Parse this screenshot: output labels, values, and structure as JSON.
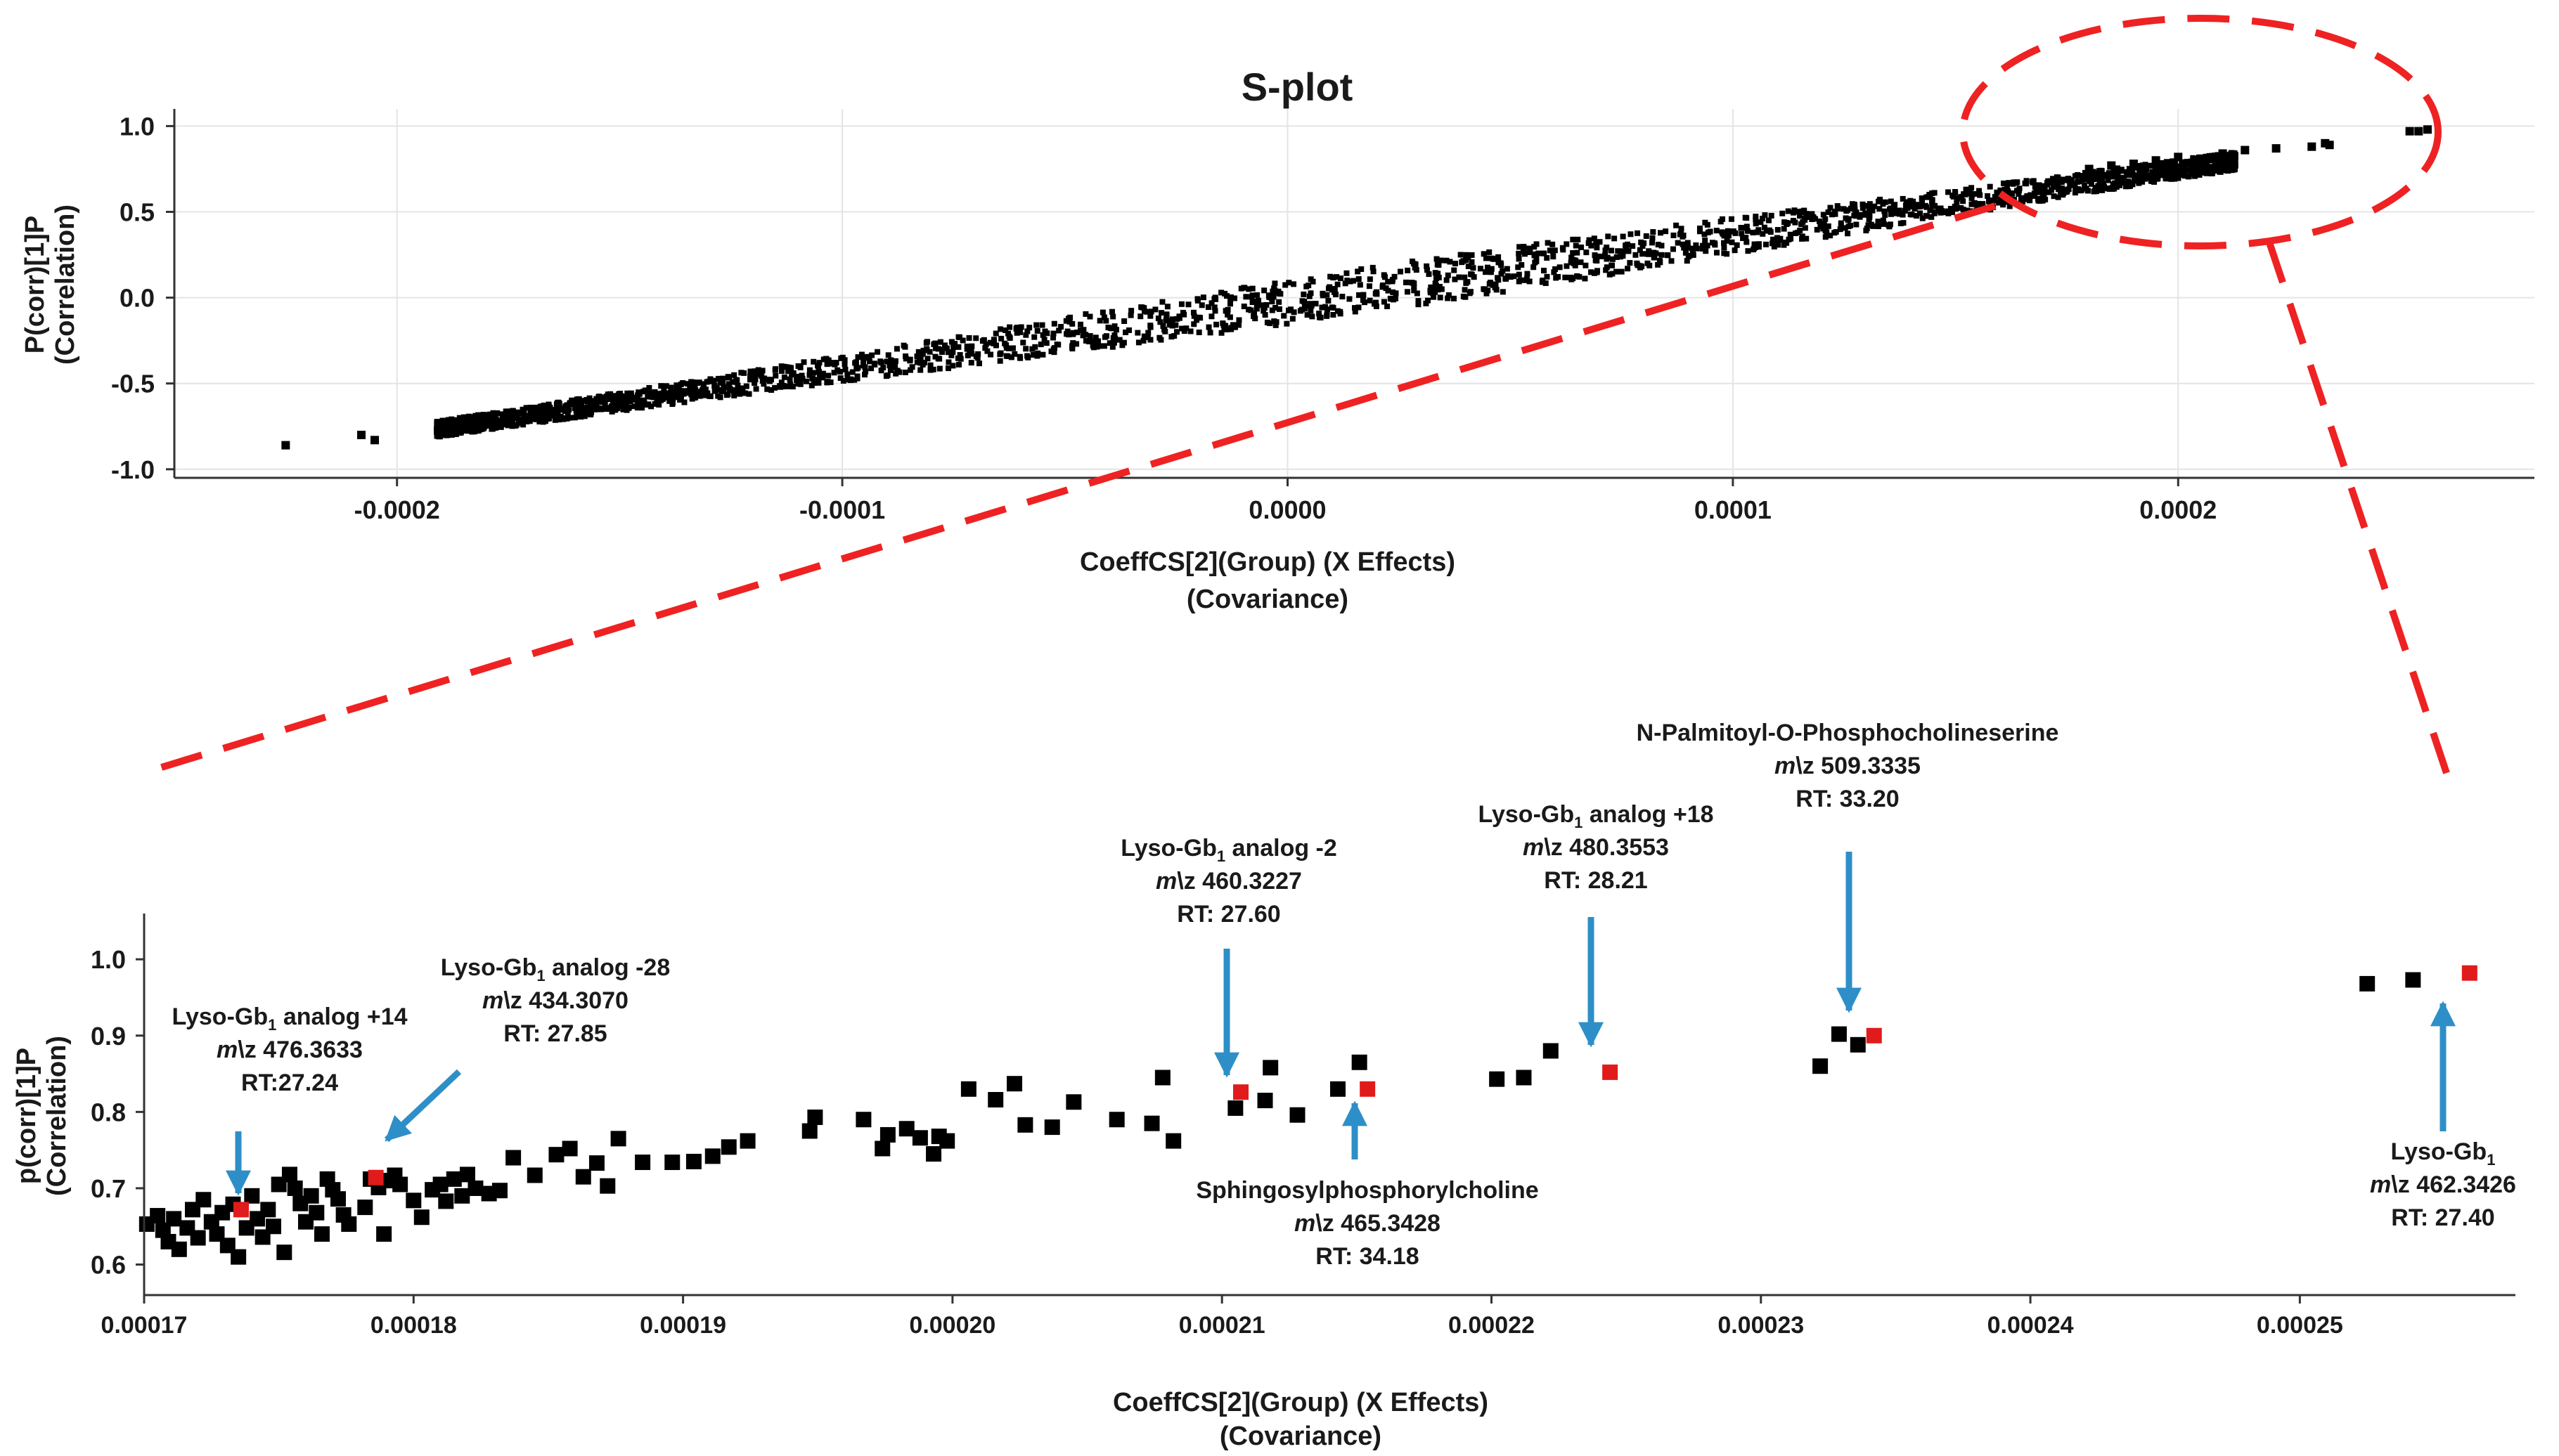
{
  "colors": {
    "point": "#000000",
    "highlight": "#e11b1b",
    "arrow": "#2e8fc8",
    "zoom": "#ee2222",
    "grid": "#e4e4e4"
  },
  "chart_data": [
    {
      "type": "scatter",
      "title": "S-plot",
      "xlabel": "CoeffCS[2](Group) (X Effects)",
      "xlabel2": "(Covariance)",
      "ylabel": "P(corr)[1]P",
      "ylabel2": "(Correlation)",
      "xlim": [
        -0.00025,
        0.00028
      ],
      "ylim": [
        -1.05,
        1.1
      ],
      "xticks": [
        -0.0002,
        -0.0001,
        0.0,
        0.0001,
        0.0002
      ],
      "xtick_labels": [
        "-0.0002",
        "-0.0001",
        "0.0000",
        "0.0001",
        "0.0002"
      ],
      "yticks": [
        1.0,
        0.5,
        0.0,
        -0.5,
        -1.0
      ],
      "ytick_labels": [
        "1.0",
        "0.5",
        "0.0",
        "-0.5",
        "-1.0"
      ],
      "band": {
        "description": "dense cloud of thousands of variables along S-curve",
        "x_start": -0.00021,
        "x_end": 0.00026,
        "y_start": -0.84,
        "y_end": 0.98
      },
      "points": [
        {
          "x": -0.000225,
          "y": -0.86
        },
        {
          "x": -0.000208,
          "y": -0.8
        },
        {
          "x": -0.000205,
          "y": -0.83
        },
        {
          "x": -0.00019,
          "y": -0.76
        },
        {
          "x": -0.000185,
          "y": -0.73
        },
        {
          "x": -0.00018,
          "y": -0.72
        },
        {
          "x": 0.00018,
          "y": 0.75
        },
        {
          "x": 0.000185,
          "y": 0.77
        },
        {
          "x": 0.00019,
          "y": 0.78
        },
        {
          "x": 0.000195,
          "y": 0.8
        },
        {
          "x": 0.0002,
          "y": 0.82
        },
        {
          "x": 0.000205,
          "y": 0.81
        },
        {
          "x": 0.00021,
          "y": 0.84
        },
        {
          "x": 0.000215,
          "y": 0.86
        },
        {
          "x": 0.000222,
          "y": 0.87
        },
        {
          "x": 0.00023,
          "y": 0.88
        },
        {
          "x": 0.000233,
          "y": 0.9
        },
        {
          "x": 0.000234,
          "y": 0.89
        },
        {
          "x": 0.000252,
          "y": 0.97
        },
        {
          "x": 0.000254,
          "y": 0.97
        },
        {
          "x": 0.000256,
          "y": 0.98
        }
      ]
    },
    {
      "type": "scatter",
      "title": "",
      "xlabel": "CoeffCS[2](Group) (X Effects)",
      "xlabel2": "(Covariance)",
      "ylabel": "p(corr)[1]P",
      "ylabel2": "(Correlation)",
      "xlim": [
        0.00017,
        0.000258
      ],
      "ylim": [
        0.56,
        1.06
      ],
      "xticks": [
        0.00017,
        0.00018,
        0.00019,
        0.0002,
        0.00021,
        0.00022,
        0.00023,
        0.00024,
        0.00025
      ],
      "xtick_labels": [
        "0.00017",
        "0.00018",
        "0.00019",
        "0.00020",
        "0.00021",
        "0.00022",
        "0.00023",
        "0.00024",
        "0.00025"
      ],
      "yticks": [
        1.0,
        0.9,
        0.8,
        0.7,
        0.6
      ],
      "ytick_labels": [
        "1.0",
        "0.9",
        "0.8",
        "0.7",
        "0.6"
      ],
      "points": [
        [
          0.0001701,
          0.653
        ],
        [
          0.0001705,
          0.664
        ],
        [
          0.0001707,
          0.645
        ],
        [
          0.0001709,
          0.63
        ],
        [
          0.0001711,
          0.66
        ],
        [
          0.0001713,
          0.62
        ],
        [
          0.0001716,
          0.648
        ],
        [
          0.0001718,
          0.672
        ],
        [
          0.000172,
          0.635
        ],
        [
          0.0001722,
          0.685
        ],
        [
          0.0001725,
          0.656
        ],
        [
          0.0001727,
          0.64
        ],
        [
          0.0001729,
          0.668
        ],
        [
          0.0001731,
          0.625
        ],
        [
          0.0001733,
          0.679
        ],
        [
          0.0001735,
          0.61
        ],
        [
          0.0001738,
          0.648
        ],
        [
          0.000174,
          0.69
        ],
        [
          0.0001742,
          0.66
        ],
        [
          0.0001744,
          0.636
        ],
        [
          0.0001746,
          0.672
        ],
        [
          0.0001748,
          0.65
        ],
        [
          0.000175,
          0.705
        ],
        [
          0.0001752,
          0.616
        ],
        [
          0.0001754,
          0.718
        ],
        [
          0.0001756,
          0.7
        ],
        [
          0.0001758,
          0.68
        ],
        [
          0.000176,
          0.656
        ],
        [
          0.0001762,
          0.69
        ],
        [
          0.0001764,
          0.668
        ],
        [
          0.0001766,
          0.64
        ],
        [
          0.0001768,
          0.712
        ],
        [
          0.000177,
          0.698
        ],
        [
          0.0001772,
          0.686
        ],
        [
          0.0001774,
          0.665
        ],
        [
          0.0001776,
          0.653
        ],
        [
          0.0001782,
          0.675
        ],
        [
          0.0001784,
          0.712
        ],
        [
          0.0001787,
          0.701
        ],
        [
          0.0001789,
          0.64
        ],
        [
          0.0001791,
          0.71
        ],
        [
          0.0001793,
          0.717
        ],
        [
          0.0001795,
          0.705
        ],
        [
          0.00018,
          0.684
        ],
        [
          0.0001803,
          0.662
        ],
        [
          0.0001807,
          0.698
        ],
        [
          0.000181,
          0.705
        ],
        [
          0.0001812,
          0.683
        ],
        [
          0.0001815,
          0.712
        ],
        [
          0.0001818,
          0.69
        ],
        [
          0.000182,
          0.718
        ],
        [
          0.0001823,
          0.7
        ],
        [
          0.0001828,
          0.693
        ],
        [
          0.0001832,
          0.697
        ],
        [
          0.0001837,
          0.74
        ],
        [
          0.0001845,
          0.717
        ],
        [
          0.0001853,
          0.744
        ],
        [
          0.0001858,
          0.752
        ],
        [
          0.0001863,
          0.715
        ],
        [
          0.0001868,
          0.733
        ],
        [
          0.0001872,
          0.703
        ],
        [
          0.0001876,
          0.765
        ],
        [
          0.0001885,
          0.734
        ],
        [
          0.0001896,
          0.734
        ],
        [
          0.0001904,
          0.735
        ],
        [
          0.0001911,
          0.742
        ],
        [
          0.0001917,
          0.754
        ],
        [
          0.0001924,
          0.762
        ],
        [
          0.0001947,
          0.775
        ],
        [
          0.0001949,
          0.793
        ],
        [
          0.0001967,
          0.79
        ],
        [
          0.0001974,
          0.752
        ],
        [
          0.0001976,
          0.77
        ],
        [
          0.0001983,
          0.778
        ],
        [
          0.0001988,
          0.766
        ],
        [
          0.0001993,
          0.745
        ],
        [
          0.0001995,
          0.768
        ],
        [
          0.0001998,
          0.762
        ],
        [
          0.0002006,
          0.83
        ],
        [
          0.0002016,
          0.816
        ],
        [
          0.0002023,
          0.837
        ],
        [
          0.0002027,
          0.783
        ],
        [
          0.0002037,
          0.78
        ],
        [
          0.0002045,
          0.813
        ],
        [
          0.0002061,
          0.79
        ],
        [
          0.0002074,
          0.785
        ],
        [
          0.0002078,
          0.845
        ],
        [
          0.0002082,
          0.762
        ],
        [
          0.0002105,
          0.805
        ],
        [
          0.0002116,
          0.815
        ],
        [
          0.0002118,
          0.858
        ],
        [
          0.0002128,
          0.796
        ],
        [
          0.0002143,
          0.83
        ],
        [
          0.0002151,
          0.865
        ],
        [
          0.0002202,
          0.843
        ],
        [
          0.0002212,
          0.845
        ],
        [
          0.0002222,
          0.88
        ],
        [
          0.0002322,
          0.86
        ],
        [
          0.0002329,
          0.902
        ],
        [
          0.0002336,
          0.888
        ],
        [
          0.0002525,
          0.968
        ],
        [
          0.0002542,
          0.973
        ]
      ],
      "highlighted": [
        {
          "x": 0.0001736,
          "y": 0.672,
          "label_lines": [
            "Lyso-Gb₁ analog +14",
            "m\\z 476.3633",
            "RT:27.24"
          ]
        },
        {
          "x": 0.0001786,
          "y": 0.714,
          "label_lines": [
            "Lyso-Gb₁ analog -28",
            "m\\z 434.3070",
            "RT: 27.85"
          ]
        },
        {
          "x": 0.0002107,
          "y": 0.826,
          "label_lines": [
            "Lyso-Gb₁ analog -2",
            "m\\z 460.3227",
            "RT: 27.60"
          ]
        },
        {
          "x": 0.0002154,
          "y": 0.83,
          "label_lines": [
            "Sphingosylphosphorylcholine",
            "m\\z 465.3428",
            "RT: 34.18"
          ]
        },
        {
          "x": 0.0002244,
          "y": 0.852,
          "label_lines": [
            "Lyso-Gb₁ analog +18",
            "m\\z 480.3553",
            "RT: 28.21"
          ]
        },
        {
          "x": 0.0002342,
          "y": 0.9,
          "label_lines": [
            "N-Palmitoyl-O-Phosphocholineserine",
            "m\\z 509.3335",
            "RT: 33.20"
          ]
        },
        {
          "x": 0.0002563,
          "y": 0.982,
          "label_lines": [
            "Lyso-Gb₁",
            "m\\z 462.3426",
            "RT: 27.40"
          ]
        }
      ]
    }
  ],
  "annotations": {
    "a14": {
      "name": "Lyso-Gb",
      "sub": "1",
      "rest": " analog +14",
      "mz_prefix": "m",
      "mz": "\\z 476.3633",
      "rt": "RT:27.24"
    },
    "a28": {
      "name": "Lyso-Gb",
      "sub": "1",
      "rest": " analog -28",
      "mz_prefix": "m",
      "mz": "\\z 434.3070",
      "rt": "RT: 27.85"
    },
    "a2": {
      "name": "Lyso-Gb",
      "sub": "1",
      "rest": " analog -2",
      "mz_prefix": "m",
      "mz": "\\z 460.3227",
      "rt": "RT: 27.60"
    },
    "spc": {
      "name": "Sphingosylphosphorylcholine",
      "mz_prefix": "m",
      "mz": "\\z 465.3428",
      "rt": "RT: 34.18"
    },
    "a18": {
      "name": "Lyso-Gb",
      "sub": "1",
      "rest": " analog +18",
      "mz_prefix": "m",
      "mz": "\\z 480.3553",
      "rt": "RT: 28.21"
    },
    "nps": {
      "name": "N-Palmitoyl-O-Phosphocholineserine",
      "mz_prefix": "m",
      "mz": "\\z 509.3335",
      "rt": "RT: 33.20"
    },
    "lyso": {
      "name": "Lyso-Gb",
      "sub": "1",
      "mz_prefix": "m",
      "mz": "\\z 462.3426",
      "rt": "RT: 27.40"
    }
  }
}
